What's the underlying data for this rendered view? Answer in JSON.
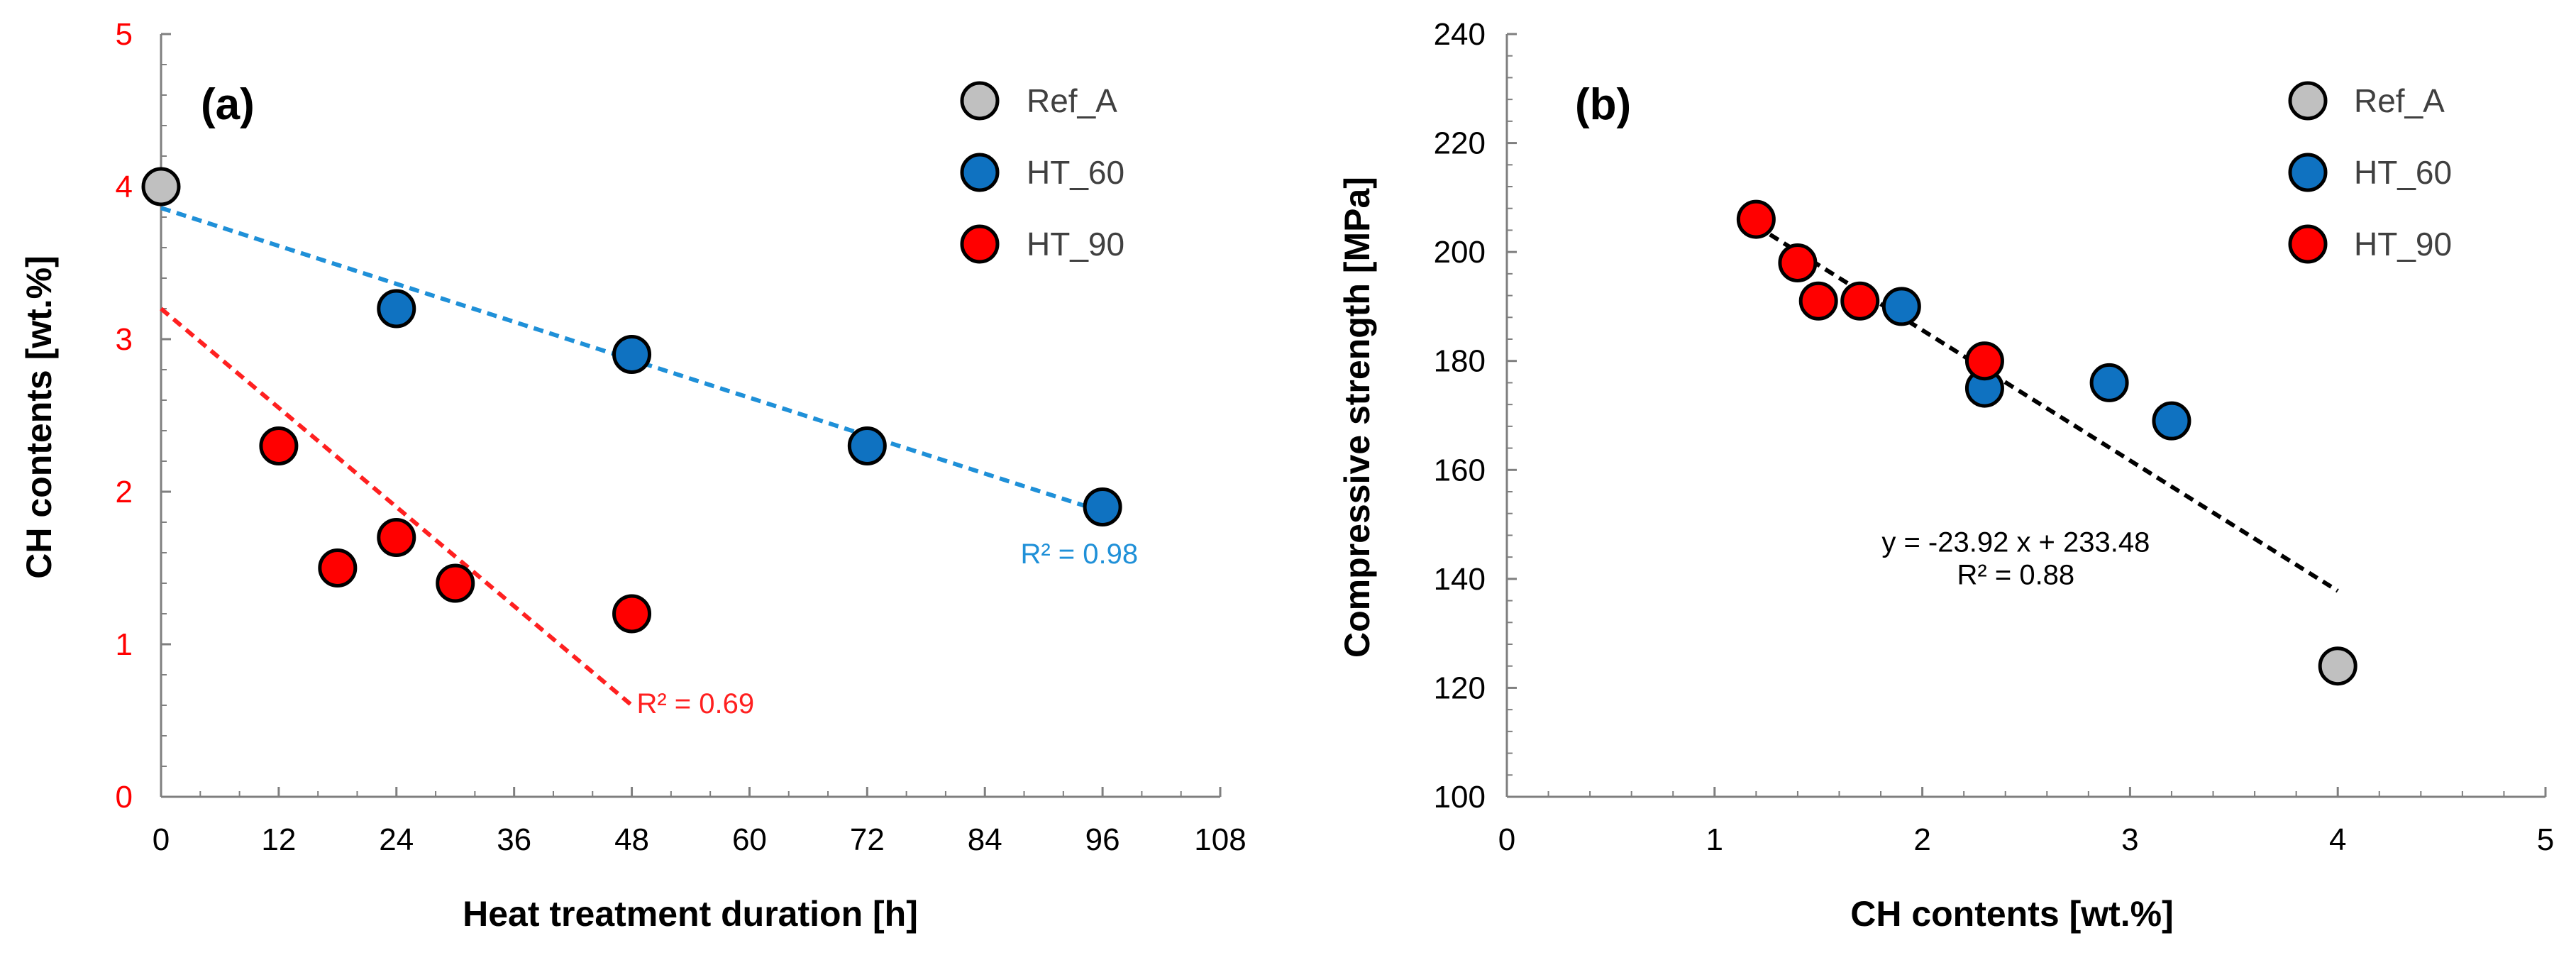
{
  "colors": {
    "ref": "#c0c0c0",
    "ht60": "#0f72c1",
    "ht90": "#ff0000",
    "fit60": "#1f90d8",
    "fit90": "#ff2020",
    "fitb": "#000000",
    "leftAxisTicks": "#ff0000",
    "axis": "#808080"
  },
  "chart_data": [
    {
      "type": "scatter",
      "panel_label": "(a)",
      "xlabel": "Heat treatment duration [h]",
      "ylabel": "CH contents [wt.%]",
      "xlim": [
        0,
        108
      ],
      "ylim": [
        0,
        5
      ],
      "xticks": [
        "0",
        "12",
        "24",
        "36",
        "48",
        "60",
        "72",
        "84",
        "96",
        "108"
      ],
      "yticks": [
        "0",
        "1",
        "2",
        "3",
        "4",
        "5"
      ],
      "legend": {
        "position": "top-right",
        "entries": [
          "Ref_A",
          "HT_60",
          "HT_90"
        ]
      },
      "series": [
        {
          "name": "Ref_A",
          "points": [
            [
              0,
              4.0
            ]
          ]
        },
        {
          "name": "HT_60",
          "points": [
            [
              24,
              3.2
            ],
            [
              48,
              2.9
            ],
            [
              72,
              2.3
            ],
            [
              96,
              1.9
            ]
          ]
        },
        {
          "name": "HT_90",
          "points": [
            [
              12,
              2.3
            ],
            [
              18,
              1.5
            ],
            [
              24,
              1.7
            ],
            [
              30,
              1.4
            ],
            [
              48,
              1.2
            ]
          ]
        }
      ],
      "trendlines": [
        {
          "series": "HT_60",
          "from": [
            0,
            3.86
          ],
          "to": [
            96,
            1.87
          ],
          "label": "R² = 0.98",
          "label_at": [
            96,
            1.53
          ]
        },
        {
          "series": "HT_90",
          "from": [
            0,
            3.2
          ],
          "to": [
            48,
            0.6
          ],
          "label": "R² = 0.69",
          "label_at": [
            48.5,
            0.55
          ]
        }
      ]
    },
    {
      "type": "scatter",
      "panel_label": "(b)",
      "xlabel": "CH contents [wt.%]",
      "ylabel": "Compressive strength [MPa]",
      "xlim": [
        0,
        5
      ],
      "ylim": [
        100,
        240
      ],
      "xticks": [
        "0",
        "1",
        "2",
        "3",
        "4",
        "5"
      ],
      "yticks": [
        "100",
        "120",
        "140",
        "160",
        "180",
        "200",
        "220",
        "240"
      ],
      "legend": {
        "position": "top-right",
        "entries": [
          "Ref_A",
          "HT_60",
          "HT_90"
        ]
      },
      "series": [
        {
          "name": "Ref_A",
          "points": [
            [
              4.0,
              124
            ]
          ]
        },
        {
          "name": "HT_60",
          "points": [
            [
              1.9,
              190
            ],
            [
              2.3,
              175
            ],
            [
              2.9,
              176
            ],
            [
              3.2,
              169
            ]
          ]
        },
        {
          "name": "HT_90",
          "points": [
            [
              1.2,
              206
            ],
            [
              1.4,
              198
            ],
            [
              1.5,
              191
            ],
            [
              1.7,
              191
            ],
            [
              2.3,
              180
            ]
          ]
        }
      ],
      "trendlines": [
        {
          "series": "all",
          "from": [
            1.2,
            204.8
          ],
          "to": [
            4.0,
            137.8
          ],
          "label": "y = -23.92 x + 233.48",
          "label2": "R² = 0.88",
          "label_at": [
            2.45,
            145
          ],
          "label2_at": [
            2.45,
            139
          ]
        }
      ]
    }
  ]
}
